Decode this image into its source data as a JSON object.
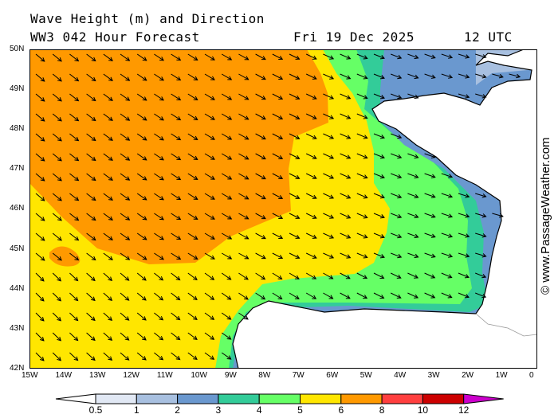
{
  "title": "Wave Height (m) and Direction",
  "subtitle": "WW3 042 Hour Forecast",
  "date": "Fri 19 Dec 2025",
  "time": "12 UTC",
  "watermark": "© www.PassageWeather.com",
  "lon_labels": [
    "15W",
    "14W",
    "13W",
    "12W",
    "11W",
    "10W",
    "9W",
    "8W",
    "7W",
    "6W",
    "5W",
    "4W",
    "3W",
    "2W",
    "1W",
    "0"
  ],
  "lat_labels": [
    "50N",
    "49N",
    "48N",
    "47N",
    "46N",
    "45N",
    "44N",
    "43N",
    "42N"
  ],
  "colorbar": {
    "labels": [
      "0.5",
      "1",
      "2",
      "3",
      "4",
      "5",
      "6",
      "8",
      "10",
      "12"
    ],
    "colors": [
      "#e1e8f4",
      "#a8c0e0",
      "#6a98cf",
      "#33cc99",
      "#66ff66",
      "#ffe600",
      "#ff9900",
      "#ff3f3f",
      "#cc0000"
    ],
    "over_color": "#cc00cc"
  },
  "colors": {
    "orange": "#ff9900",
    "yellow": "#ffe600",
    "green": "#66ff66",
    "teal": "#33cc99",
    "blue": "#6a98cf",
    "lightblue": "#a8c0e0",
    "pale": "#e1e8f4",
    "land": "#ffffff"
  }
}
